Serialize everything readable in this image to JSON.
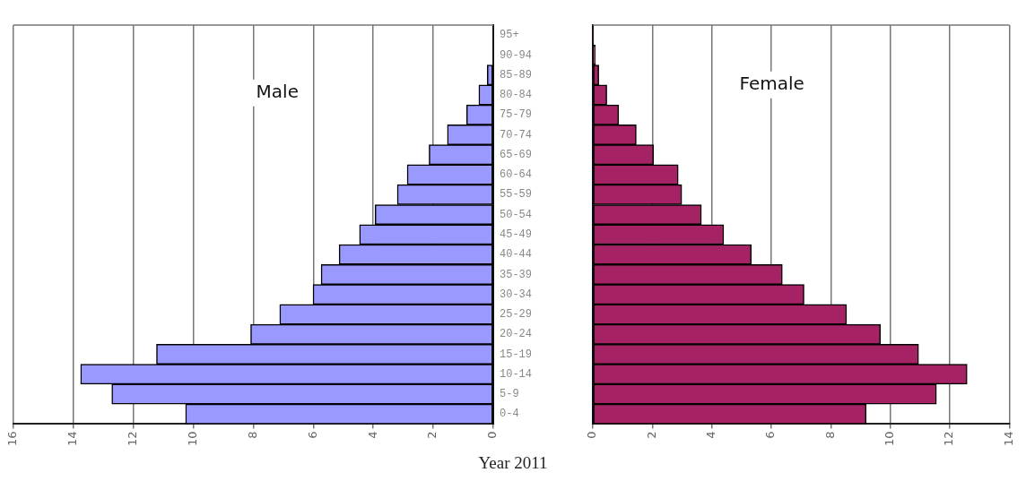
{
  "chart_data": [
    {
      "type": "bar",
      "orientation": "horizontal",
      "title": "Male",
      "categories": [
        "95+",
        "90-94",
        "85-89",
        "80-84",
        "75-79",
        "70-74",
        "65-69",
        "60-64",
        "55-59",
        "50-54",
        "45-49",
        "40-44",
        "35-39",
        "30-34",
        "25-29",
        "20-24",
        "15-19",
        "10-14",
        "5-9",
        "0-4"
      ],
      "series": [
        {
          "color": "#9999ff",
          "values": [
            null,
            null,
            0.2,
            0.48,
            0.89,
            1.53,
            2.14,
            2.87,
            3.2,
            3.94,
            4.46,
            5.14,
            5.74,
            6.01,
            7.12,
            8.09,
            11.23,
            13.76,
            12.72,
            10.26
          ]
        }
      ],
      "xlim": [
        16,
        0
      ],
      "xticks": [
        16,
        14,
        12,
        10,
        8,
        6,
        4,
        2,
        0
      ],
      "grid": "x",
      "annotations": [
        "Year 2011"
      ]
    },
    {
      "type": "bar",
      "orientation": "horizontal",
      "title": "Female",
      "categories": [
        null,
        null,
        null,
        null,
        null,
        null,
        null,
        null,
        null,
        null,
        null,
        null,
        null,
        null,
        null,
        null,
        null,
        null,
        null,
        null
      ],
      "series": [
        {
          "color": "#a52364",
          "values": [
            0.03,
            0.09,
            0.2,
            0.47,
            0.87,
            1.46,
            2.04,
            2.87,
            2.99,
            3.65,
            4.4,
            5.33,
            6.37,
            7.1,
            8.53,
            9.67,
            10.95,
            12.58,
            11.55,
            9.19
          ]
        }
      ],
      "xlim": [
        0,
        14
      ],
      "xticks": [
        0,
        2,
        4,
        6,
        8,
        10,
        12,
        14
      ],
      "grid": "x",
      "tick_labels": "x"
    }
  ]
}
